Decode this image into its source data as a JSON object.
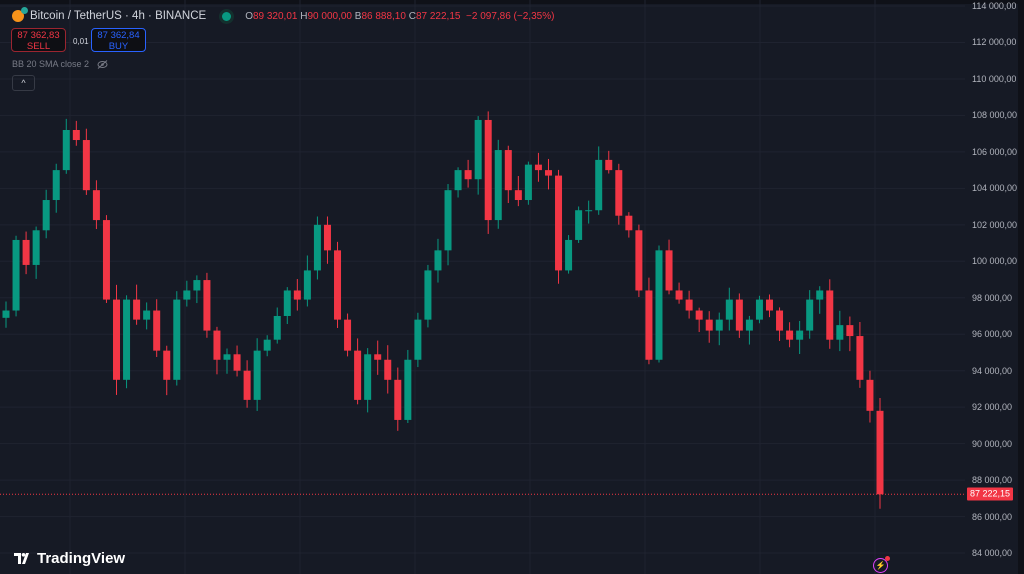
{
  "header": {
    "symbol": "Bitcoin / TetherUS · 4h · BINANCE",
    "o_label": "O",
    "open": "89 320,01",
    "h_label": "H",
    "high": "90 000,00",
    "l_label": "B",
    "low": "86 888,10",
    "c_label": "C",
    "close": "87 222,15",
    "change": "−2 097,86 (−2,35%)"
  },
  "trade": {
    "sell_price": "87 362,83",
    "sell_label": "SELL",
    "spread": "0,01",
    "buy_price": "87 362,84",
    "buy_label": "BUY"
  },
  "indicator": {
    "label": "BB 20 SMA close 2",
    "icon": "eye-crossed-icon"
  },
  "collapse_icon": "^",
  "logo": "TradingView",
  "colors": {
    "up": "#089981",
    "down": "#f23645",
    "background": "#161a25",
    "grid": "#1f2330"
  },
  "chart_data": {
    "type": "candlestick",
    "y_ticks": [
      "114 000,00",
      "112 000,00",
      "110 000,00",
      "108 000,00",
      "106 000,00",
      "104 000,00",
      "102 000,00",
      "100 000,00",
      "98 000,00",
      "96 000,00",
      "94 000,00",
      "92 000,00",
      "90 000,00",
      "88 000,00",
      "86 000,00",
      "84 000,00"
    ],
    "ylim": [
      84000,
      114000
    ],
    "grid": true,
    "last_price": 87222.15,
    "last_price_label": "87 222,15",
    "closes": [
      97300,
      101170,
      99800,
      101700,
      103360,
      105000,
      107200,
      106650,
      103900,
      102260,
      97900,
      93500,
      97900,
      96800,
      97300,
      95100,
      93500,
      97900,
      98400,
      98970,
      96200,
      94600,
      94900,
      94000,
      92400,
      95100,
      95700,
      97000,
      98400,
      97900,
      99500,
      102000,
      100600,
      96800,
      95100,
      92400,
      94900,
      94600,
      93500,
      91300,
      94600,
      96800,
      99500,
      100600,
      103900,
      105000,
      104500,
      107750,
      102260,
      106100,
      103900,
      103360,
      105300,
      105000,
      104700,
      99500,
      101170,
      102800,
      102800,
      105560,
      105000,
      102500,
      101700,
      98400,
      94600,
      100600,
      98400,
      97900,
      97300,
      96800,
      96200,
      96800,
      97900,
      96200,
      96800,
      97900,
      97300,
      96200,
      95700,
      96200,
      97900,
      98400,
      95700,
      96500,
      95900,
      93500,
      91800,
      87222
    ]
  }
}
